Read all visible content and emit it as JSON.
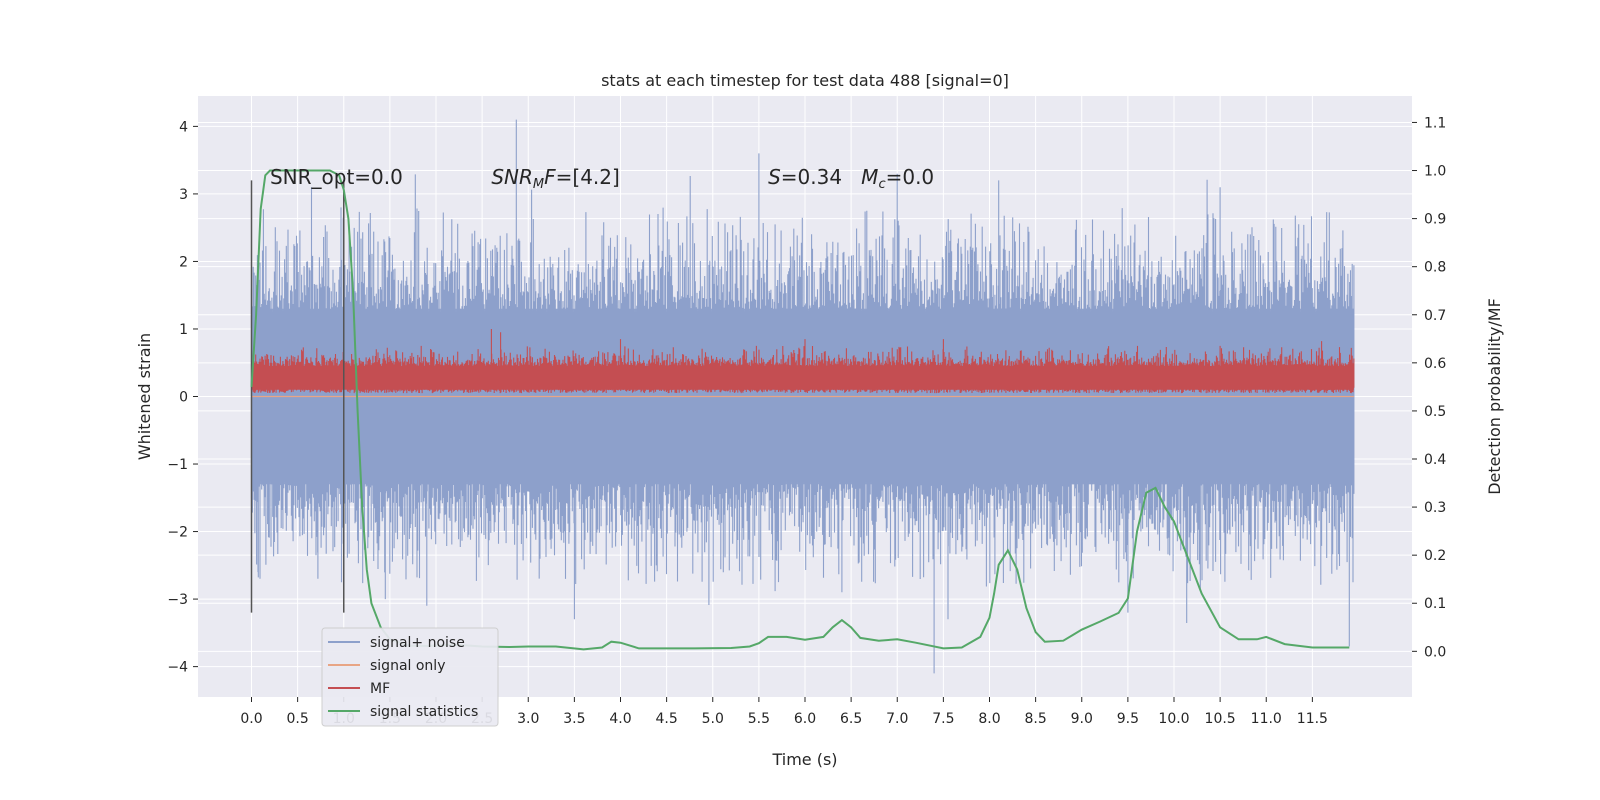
{
  "chart_data": {
    "type": "line",
    "title": "stats at each timestep for test data 488 [signal=0]",
    "xlabel": "Time (s)",
    "ylabel_left": "Whitened strain",
    "ylabel_right": "Detection probability/MF",
    "xlim": [
      -0.58,
      12.58
    ],
    "ylim_left": [
      -4.45,
      4.45
    ],
    "ylim_right": [
      -0.095,
      1.155
    ],
    "x_ticks": [
      "0.0",
      "0.5",
      "1.0",
      "1.5",
      "2.0",
      "2.5",
      "3.0",
      "3.5",
      "4.0",
      "4.5",
      "5.0",
      "5.5",
      "6.0",
      "6.5",
      "7.0",
      "7.5",
      "8.0",
      "8.5",
      "9.0",
      "9.5",
      "10.0",
      "10.5",
      "11.0",
      "11.5"
    ],
    "y_left_ticks": [
      4,
      3,
      2,
      1,
      0,
      -1,
      -2,
      -3,
      -4
    ],
    "y_left_tick_labels": [
      "4",
      "3",
      "2",
      "1",
      "0",
      "−1",
      "−2",
      "−3",
      "−4"
    ],
    "y_right_ticks": [
      "1.1",
      "1.0",
      "0.9",
      "0.8",
      "0.7",
      "0.6",
      "0.5",
      "0.4",
      "0.3",
      "0.2",
      "0.1",
      "0.0"
    ],
    "grid": true,
    "legend_position": "bottom-left",
    "colors": {
      "background": "#eaeaf2",
      "grid": "#ffffff",
      "noise": "#8da0cb",
      "signal_only": "#e8a585",
      "mf": "#c44e52",
      "stats": "#55a868",
      "vline": "#555555"
    },
    "series": [
      {
        "name": "signal+ noise",
        "axis": "left",
        "note": "dense noise band",
        "typical_envelope": [
          -1.3,
          1.3
        ],
        "peak_values": [
          [
            0.0,
            1.6
          ],
          [
            0.07,
            -2.6
          ],
          [
            0.65,
            3.1
          ],
          [
            0.72,
            -2.7
          ],
          [
            0.97,
            2.8
          ],
          [
            1.45,
            -3.0
          ],
          [
            1.9,
            -3.1
          ],
          [
            2.87,
            4.1
          ],
          [
            3.5,
            -3.3
          ],
          [
            5.5,
            3.6
          ],
          [
            6.4,
            -2.9
          ],
          [
            7.0,
            3.3
          ],
          [
            7.4,
            -4.1
          ],
          [
            7.55,
            -3.3
          ],
          [
            8.1,
            3.2
          ],
          [
            9.5,
            -3.2
          ],
          [
            10.5,
            3.1
          ],
          [
            11.9,
            -3.7
          ]
        ]
      },
      {
        "name": "signal only",
        "axis": "left",
        "values_constant": 0.0
      },
      {
        "name": "MF",
        "axis": "left",
        "note": "dense band",
        "typical_envelope": [
          0.05,
          0.6
        ],
        "peak_values": [
          [
            1.0,
            0.72
          ],
          [
            2.6,
            1.0
          ],
          [
            2.7,
            0.95
          ],
          [
            4.0,
            0.85
          ],
          [
            6.0,
            0.85
          ],
          [
            7.5,
            0.85
          ],
          [
            10.5,
            0.75
          ],
          [
            11.6,
            0.82
          ]
        ]
      },
      {
        "name": "signal statistics",
        "axis": "right",
        "x": [
          0.0,
          0.05,
          0.1,
          0.15,
          0.2,
          0.3,
          0.5,
          0.7,
          0.85,
          0.95,
          1.0,
          1.05,
          1.1,
          1.15,
          1.2,
          1.25,
          1.3,
          1.4,
          1.5,
          1.7,
          1.9,
          2.2,
          2.5,
          2.8,
          3.0,
          3.3,
          3.6,
          3.8,
          3.9,
          4.0,
          4.2,
          4.5,
          4.8,
          5.2,
          5.4,
          5.5,
          5.6,
          5.8,
          6.0,
          6.2,
          6.3,
          6.4,
          6.5,
          6.6,
          6.8,
          7.0,
          7.2,
          7.5,
          7.7,
          7.9,
          8.0,
          8.05,
          8.1,
          8.2,
          8.3,
          8.4,
          8.5,
          8.6,
          8.8,
          9.0,
          9.2,
          9.4,
          9.5,
          9.6,
          9.7,
          9.8,
          9.9,
          10.0,
          10.1,
          10.3,
          10.5,
          10.7,
          10.9,
          11.0,
          11.2,
          11.5,
          11.9
        ],
        "values": [
          0.55,
          0.7,
          0.92,
          0.99,
          1.0,
          1.0,
          1.0,
          1.0,
          1.0,
          0.99,
          0.96,
          0.9,
          0.75,
          0.5,
          0.3,
          0.17,
          0.1,
          0.05,
          0.025,
          0.012,
          0.011,
          0.014,
          0.01,
          0.009,
          0.01,
          0.01,
          0.004,
          0.008,
          0.02,
          0.018,
          0.006,
          0.006,
          0.006,
          0.007,
          0.01,
          0.017,
          0.03,
          0.03,
          0.024,
          0.03,
          0.05,
          0.065,
          0.05,
          0.028,
          0.022,
          0.025,
          0.018,
          0.006,
          0.008,
          0.03,
          0.07,
          0.12,
          0.18,
          0.21,
          0.17,
          0.09,
          0.04,
          0.02,
          0.022,
          0.045,
          0.062,
          0.08,
          0.11,
          0.25,
          0.33,
          0.34,
          0.3,
          0.27,
          0.22,
          0.12,
          0.05,
          0.025,
          0.025,
          0.03,
          0.015,
          0.008,
          0.008
        ]
      }
    ],
    "vlines": [
      0.0,
      1.0
    ],
    "annotations": [
      {
        "text": "SNR_opt=0.0",
        "x": 0.2,
        "y": 3.15
      },
      {
        "text_parts": [
          "SNR",
          "M",
          "F=[4.2]"
        ],
        "x": 2.6,
        "y": 3.15
      },
      {
        "text_parts": [
          "S",
          "=0.34   ",
          "M",
          "c",
          "=0.0"
        ],
        "x": 5.6,
        "y": 3.15
      }
    ],
    "legend": [
      "signal+ noise",
      "signal only",
      "MF",
      "signal statistics"
    ]
  }
}
